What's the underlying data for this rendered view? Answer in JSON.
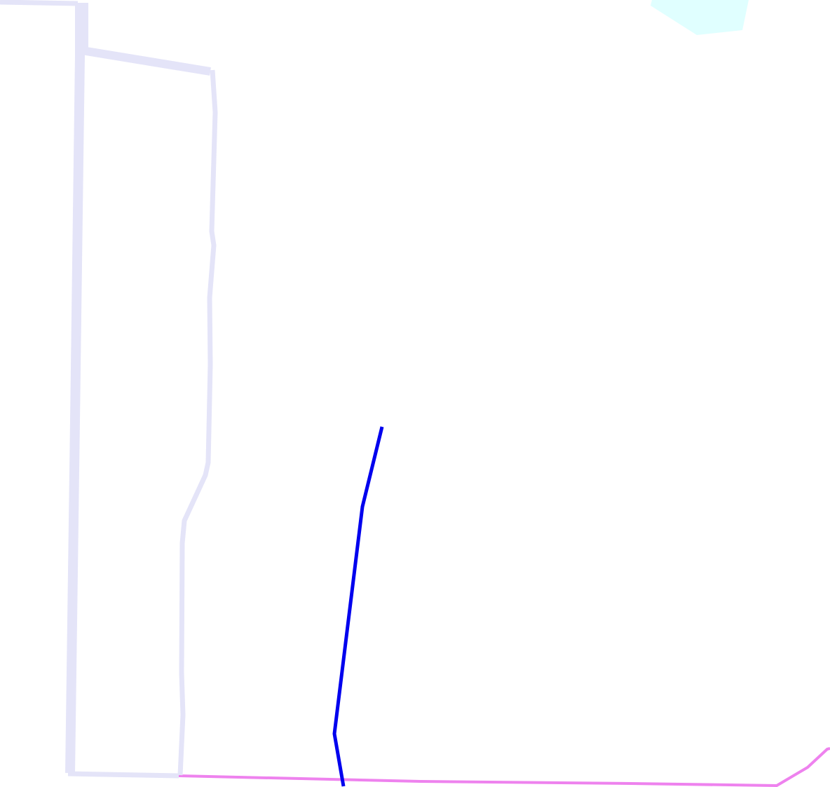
{
  "map": {
    "background_color": "#ffffff",
    "features": {
      "road_outline": {
        "color": "#e4e4f8"
      },
      "blue_route": {
        "color": "#0000ee"
      },
      "pink_route": {
        "color": "#ee82ee"
      },
      "water_area": {
        "color": "#e0ffff"
      }
    }
  }
}
